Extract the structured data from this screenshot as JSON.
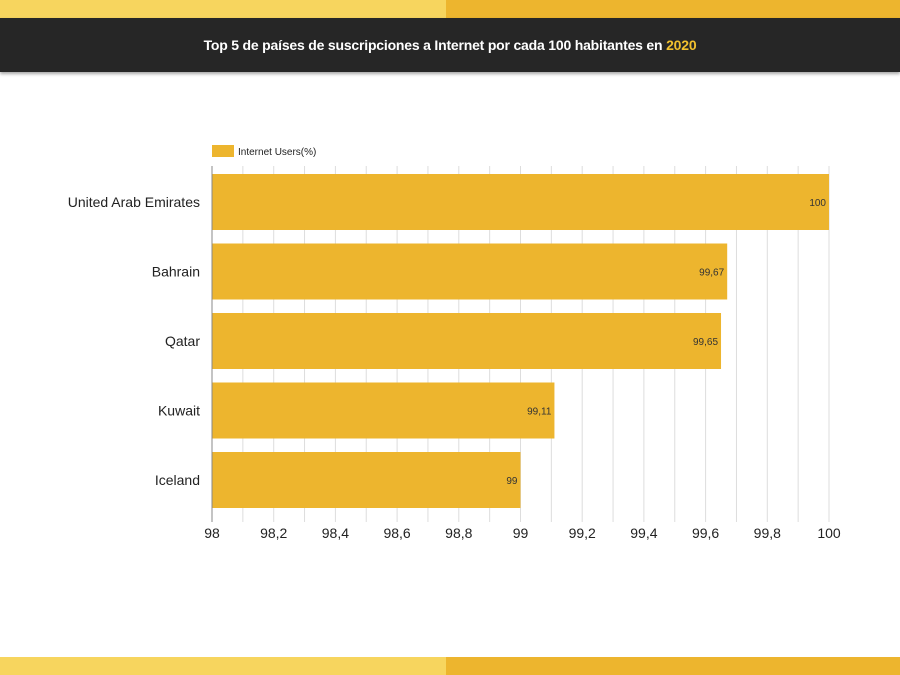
{
  "header": {
    "title_main": "Top 5 de países de suscripciones a Internet por cada 100 habitantes en ",
    "title_year": "2020"
  },
  "colors": {
    "bar": "#EDB52E",
    "header_bg": "#262626",
    "accent_text": "#F2C12E",
    "stripe_light": "#F7D55E",
    "stripe_dark": "#EDB52E"
  },
  "chart_data": {
    "type": "bar",
    "orientation": "horizontal",
    "title": "Top 5 de países de suscripciones a Internet por cada 100 habitantes en 2020",
    "categories": [
      "United Arab Emirates",
      "Bahrain",
      "Qatar",
      "Kuwait",
      "Iceland"
    ],
    "series": [
      {
        "name": "Internet Users(%)",
        "values": [
          100,
          99.67,
          99.65,
          99.11,
          99
        ],
        "value_labels": [
          "100",
          "99,67",
          "99,65",
          "99,11",
          "99"
        ]
      }
    ],
    "xlim": [
      98,
      100
    ],
    "x_ticks": [
      98,
      98.2,
      98.4,
      98.6,
      98.8,
      99,
      99.2,
      99.4,
      99.6,
      99.8,
      100
    ],
    "x_tick_labels": [
      "98",
      "98,2",
      "98,4",
      "98,6",
      "98,8",
      "99",
      "99,2",
      "99,4",
      "99,6",
      "99,8",
      "100"
    ],
    "minor_grid_step": 0.1,
    "grid": true,
    "legend_position": "top-left"
  }
}
